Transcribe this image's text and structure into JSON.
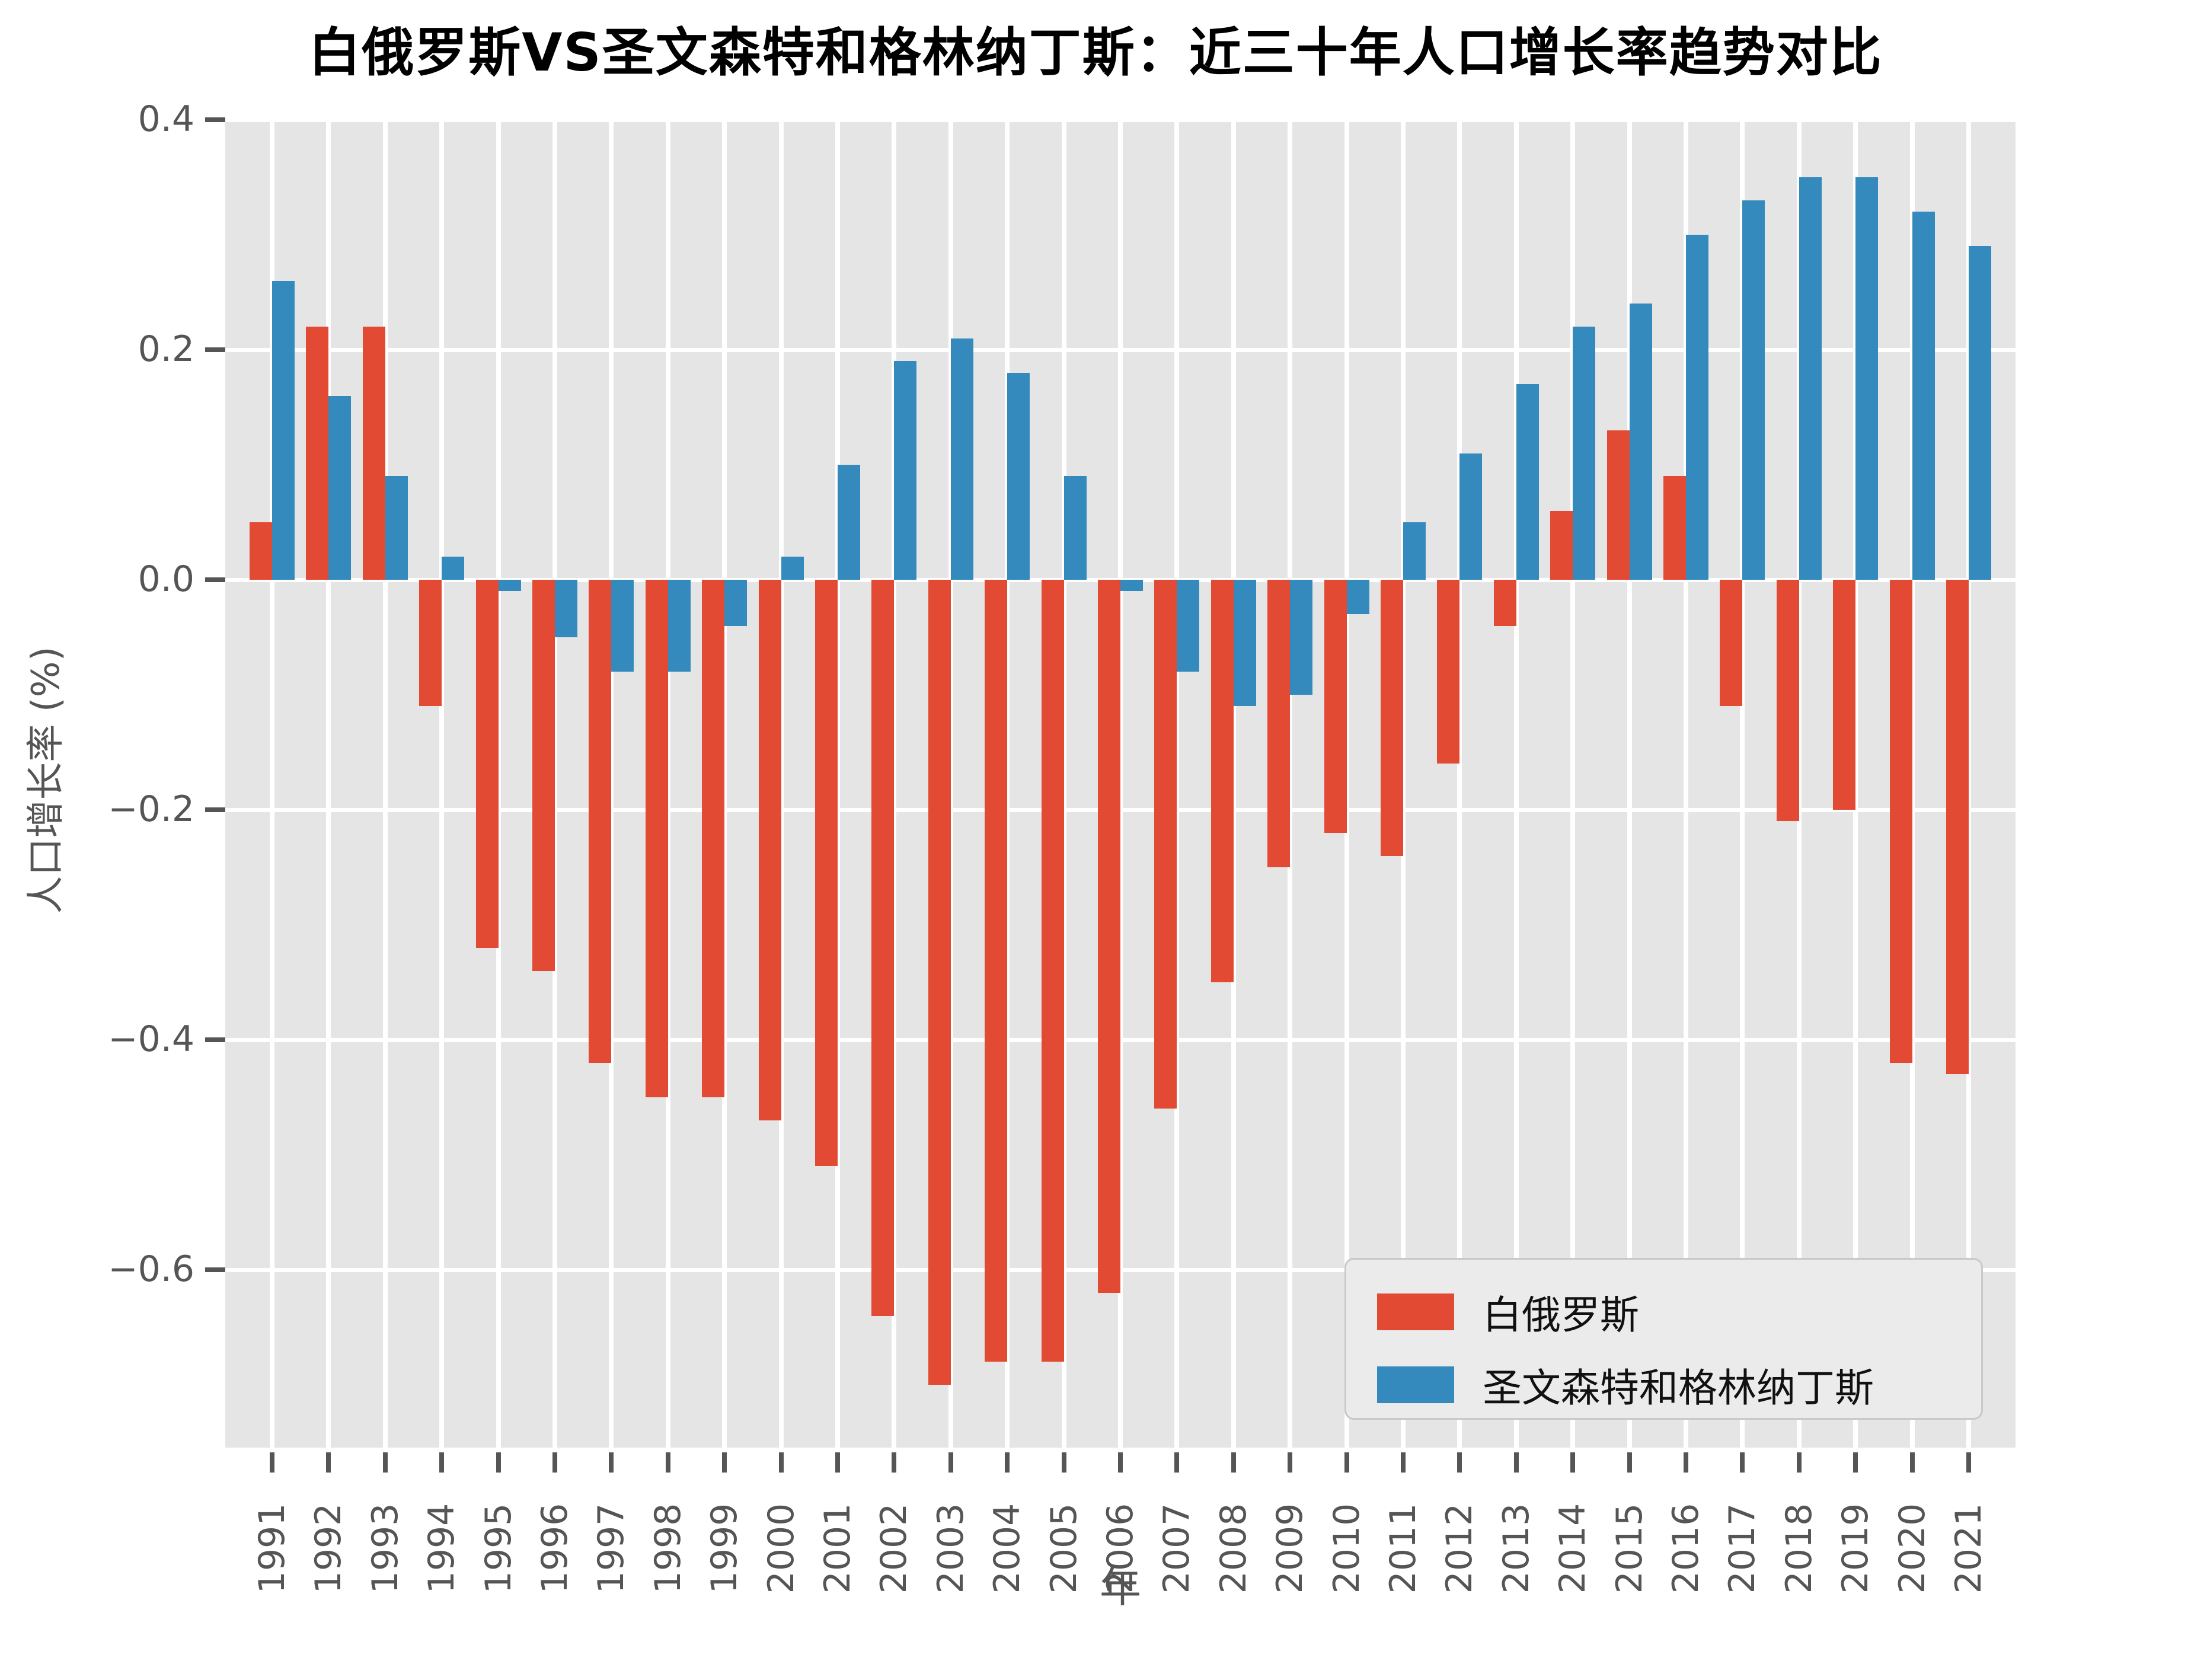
{
  "chart_data": {
    "type": "bar",
    "title": "白俄罗斯VS圣文森特和格林纳丁斯：近三十年人口增长率趋势对比",
    "xlabel": "年",
    "ylabel": "人口增长率 (%)",
    "categories": [
      "1991",
      "1992",
      "1993",
      "1994",
      "1995",
      "1996",
      "1997",
      "1998",
      "1999",
      "2000",
      "2001",
      "2002",
      "2003",
      "2004",
      "2005",
      "2006",
      "2007",
      "2008",
      "2009",
      "2010",
      "2011",
      "2012",
      "2013",
      "2014",
      "2015",
      "2016",
      "2017",
      "2018",
      "2019",
      "2020",
      "2021"
    ],
    "series": [
      {
        "name": "白俄罗斯",
        "color": "#E24A33",
        "values": [
          0.05,
          0.22,
          0.22,
          -0.11,
          -0.32,
          -0.34,
          -0.42,
          -0.45,
          -0.45,
          -0.47,
          -0.51,
          -0.64,
          -0.7,
          -0.68,
          -0.68,
          -0.62,
          -0.46,
          -0.35,
          -0.25,
          -0.22,
          -0.24,
          -0.16,
          -0.04,
          0.06,
          0.13,
          0.09,
          -0.11,
          -0.21,
          -0.2,
          -0.42,
          -0.43
        ]
      },
      {
        "name": "圣文森特和格林纳丁斯",
        "color": "#348ABD",
        "values": [
          0.26,
          0.16,
          0.09,
          0.02,
          -0.01,
          -0.05,
          -0.08,
          -0.08,
          -0.04,
          0.02,
          0.1,
          0.19,
          0.21,
          0.18,
          0.09,
          -0.01,
          -0.08,
          -0.11,
          -0.1,
          -0.03,
          0.05,
          0.11,
          0.17,
          0.22,
          0.24,
          0.3,
          0.33,
          0.35,
          0.35,
          0.32,
          0.29
        ]
      }
    ],
    "yticks": [
      0.4,
      0.2,
      0.0,
      -0.2,
      -0.4,
      -0.6
    ],
    "ytick_labels": [
      "0.4",
      "0.2",
      "0.0",
      "−0.2",
      "−0.4",
      "−0.6"
    ],
    "ylim": [
      -0.755,
      0.4
    ],
    "grid": true,
    "legend_position": "lower right",
    "colors": {
      "plot_bg": "#E5E5E5",
      "grid": "#FFFFFF",
      "tick": "#555555",
      "title": "#000000"
    }
  }
}
